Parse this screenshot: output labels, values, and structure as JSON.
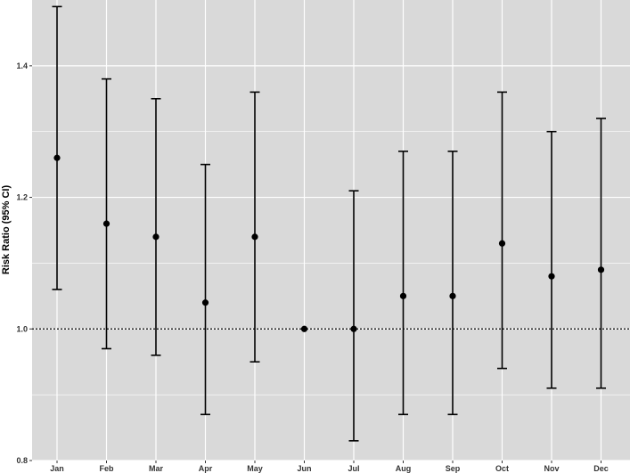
{
  "chart_data": {
    "type": "errorbar",
    "title": "",
    "xlabel": "",
    "ylabel": "Risk Ratio (95% CI)",
    "categories": [
      "Jan",
      "Feb",
      "Mar",
      "Apr",
      "May",
      "Jun",
      "Jul",
      "Aug",
      "Sep",
      "Oct",
      "Nov",
      "Dec"
    ],
    "series": [
      {
        "estimate": [
          1.26,
          1.16,
          1.14,
          1.04,
          1.14,
          1.0,
          1.0,
          1.05,
          1.05,
          1.13,
          1.08,
          1.09
        ],
        "lower": [
          1.06,
          0.97,
          0.96,
          0.87,
          0.95,
          null,
          0.83,
          0.87,
          0.87,
          0.94,
          0.91,
          0.91
        ],
        "upper": [
          1.49,
          1.38,
          1.35,
          1.25,
          1.36,
          null,
          1.21,
          1.27,
          1.27,
          1.36,
          1.3,
          1.32
        ]
      }
    ],
    "reference_line": 1.0,
    "ylim": [
      0.8,
      1.5
    ],
    "yticks": [
      "0.8",
      "1.0",
      "1.2",
      "1.4"
    ],
    "grid": true,
    "legend": "none",
    "colors": {
      "panel": "#d9d9d9",
      "grid": "#ffffff",
      "marks": "#000000"
    }
  }
}
